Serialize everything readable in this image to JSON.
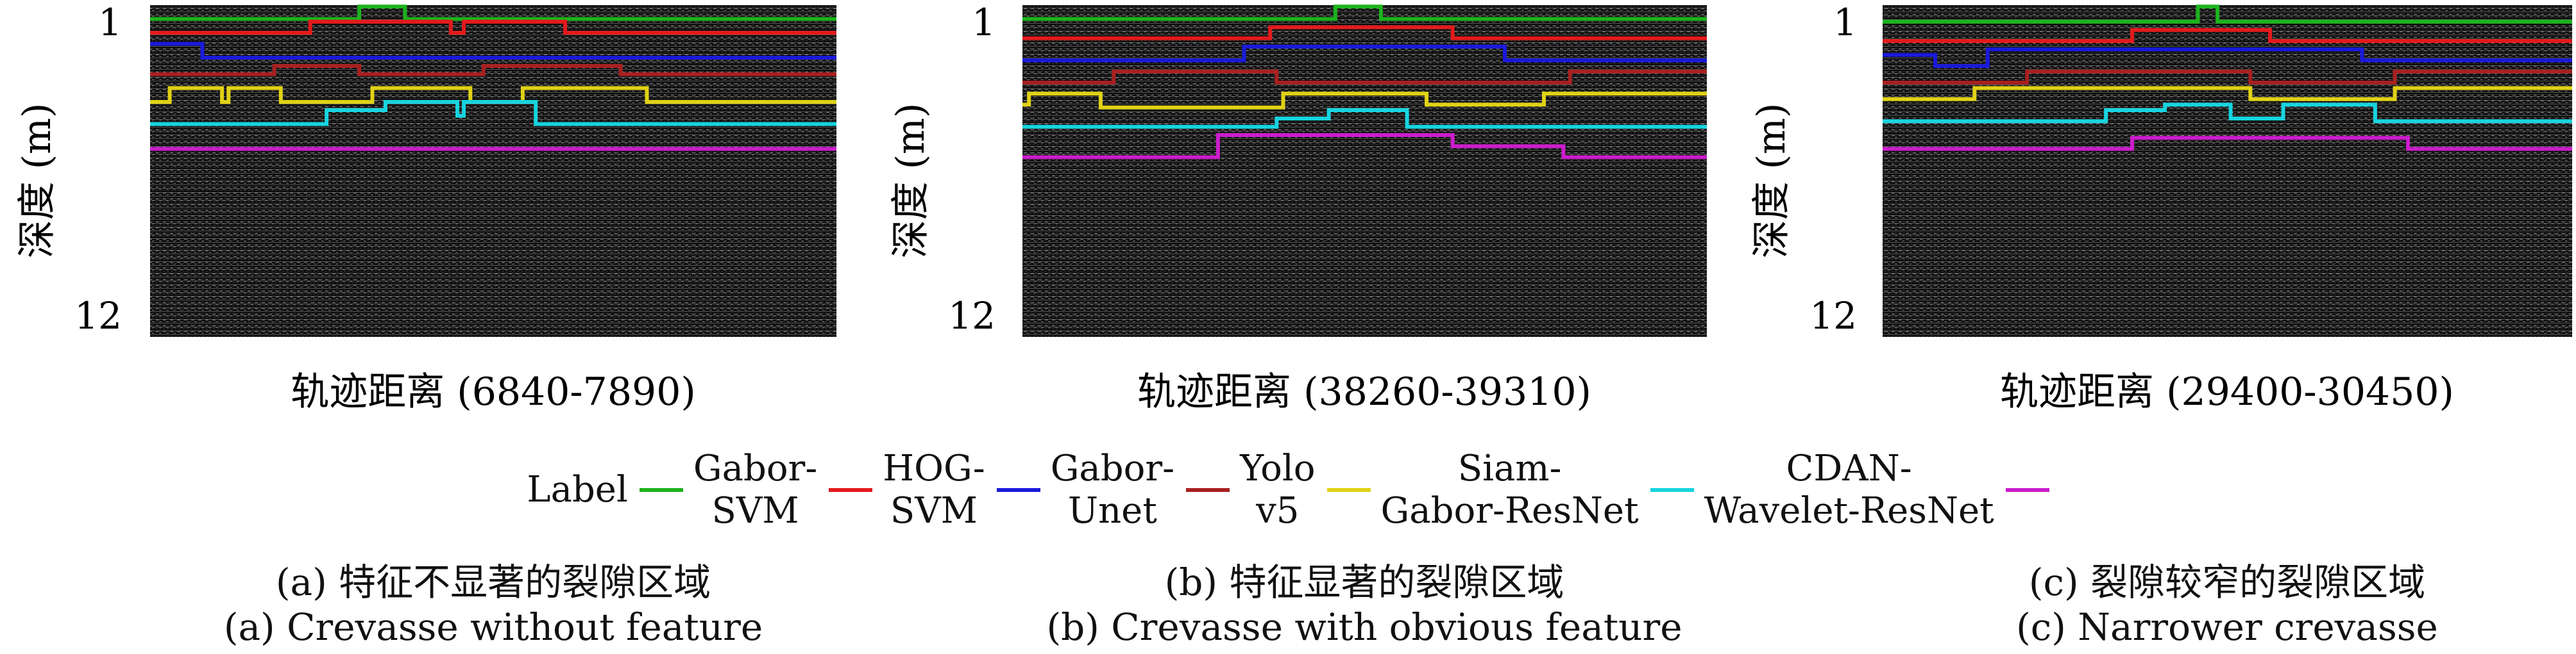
{
  "chart_data": [
    {
      "type": "line",
      "title": "",
      "xlabel": "轨迹距离 (6840-7890)",
      "ylabel": "深度 (m)",
      "ytick_labels": [
        "1",
        "12"
      ],
      "ylim": [
        12,
        1
      ],
      "x_range": [
        6840,
        7890
      ],
      "background": "radargram",
      "series": [
        {
          "name": "Label",
          "color": "#1db31d",
          "x": [
            6840,
            7160,
            7160,
            7230,
            7230,
            7890
          ],
          "y": [
            0.5,
            0.5,
            0.05,
            0.05,
            0.5,
            0.5
          ]
        },
        {
          "name": "Gabor-SVM",
          "color": "#e31a1c",
          "x": [
            6840,
            7085,
            7085,
            7300,
            7300,
            7320,
            7320,
            7475,
            7475,
            7890
          ],
          "y": [
            1.0,
            1.0,
            0.6,
            0.6,
            1.0,
            1.0,
            0.6,
            0.6,
            1.0,
            1.0
          ]
        },
        {
          "name": "HOG-SVM",
          "color": "#1a1adb",
          "x": [
            6840,
            6920,
            6920,
            7890
          ],
          "y": [
            1.4,
            1.4,
            1.9,
            1.9
          ]
        },
        {
          "name": "Gabor-Unet",
          "color": "#a82020",
          "x": [
            6840,
            7030,
            7030,
            7160,
            7160,
            7350,
            7350,
            7560,
            7560,
            7890
          ],
          "y": [
            2.5,
            2.5,
            2.2,
            2.2,
            2.5,
            2.5,
            2.2,
            2.2,
            2.5,
            2.5
          ]
        },
        {
          "name": "Yolo v5",
          "color": "#e0d215",
          "x": [
            6840,
            6870,
            6870,
            6950,
            6950,
            6960,
            6960,
            7040,
            7040,
            7180,
            7180,
            7330,
            7330,
            7410,
            7410,
            7600,
            7600,
            7890
          ],
          "y": [
            3.5,
            3.5,
            3.0,
            3.0,
            3.5,
            3.5,
            3.0,
            3.0,
            3.5,
            3.5,
            3.0,
            3.0,
            3.5,
            3.5,
            3.0,
            3.0,
            3.5,
            3.5
          ]
        },
        {
          "name": "Siam-Gabor-ResNet",
          "color": "#17d4e0",
          "x": [
            6840,
            7110,
            7110,
            7200,
            7200,
            7310,
            7310,
            7320,
            7320,
            7430,
            7430,
            7890
          ],
          "y": [
            4.3,
            4.3,
            3.8,
            3.8,
            3.5,
            3.5,
            4.0,
            4.0,
            3.5,
            3.5,
            4.3,
            4.3
          ]
        },
        {
          "name": "CDAN-Wavelet-ResNet",
          "color": "#cc1ccc",
          "x": [
            6840,
            7890
          ],
          "y": [
            5.2,
            5.2
          ]
        }
      ]
    },
    {
      "type": "line",
      "title": "",
      "xlabel": "轨迹距离 (38260-39310)",
      "ylabel": "深度 (m)",
      "ytick_labels": [
        "1",
        "12"
      ],
      "ylim": [
        12,
        1
      ],
      "x_range": [
        38260,
        39310
      ],
      "background": "radargram",
      "series": [
        {
          "name": "Label",
          "color": "#1db31d",
          "x": [
            38260,
            38740,
            38740,
            38810,
            38810,
            39310
          ],
          "y": [
            0.5,
            0.5,
            0.05,
            0.05,
            0.5,
            0.5
          ]
        },
        {
          "name": "Gabor-SVM",
          "color": "#e31a1c",
          "x": [
            38260,
            38640,
            38640,
            38920,
            38920,
            39310
          ],
          "y": [
            1.2,
            1.2,
            0.8,
            0.8,
            1.2,
            1.2
          ]
        },
        {
          "name": "HOG-SVM",
          "color": "#1a1adb",
          "x": [
            38260,
            38600,
            38600,
            39000,
            39000,
            39310
          ],
          "y": [
            2.0,
            2.0,
            1.5,
            1.5,
            2.0,
            2.0
          ]
        },
        {
          "name": "Gabor-Unet",
          "color": "#a82020",
          "x": [
            38260,
            38400,
            38400,
            38650,
            38650,
            39100,
            39100,
            39310
          ],
          "y": [
            2.8,
            2.8,
            2.4,
            2.4,
            2.8,
            2.8,
            2.4,
            2.4
          ]
        },
        {
          "name": "Yolo v5",
          "color": "#e0d215",
          "x": [
            38260,
            38270,
            38270,
            38380,
            38380,
            38660,
            38660,
            38880,
            38880,
            39060,
            39060,
            39310
          ],
          "y": [
            3.6,
            3.6,
            3.2,
            3.2,
            3.7,
            3.7,
            3.2,
            3.2,
            3.6,
            3.6,
            3.2,
            3.2
          ]
        },
        {
          "name": "Siam-Gabor-ResNet",
          "color": "#17d4e0",
          "x": [
            38260,
            38650,
            38650,
            38730,
            38730,
            38850,
            38850,
            39310
          ],
          "y": [
            4.4,
            4.4,
            4.1,
            4.1,
            3.8,
            3.8,
            4.4,
            4.4
          ]
        },
        {
          "name": "CDAN-Wavelet-ResNet",
          "color": "#cc1ccc",
          "x": [
            38260,
            38560,
            38560,
            38920,
            38920,
            39090,
            39090,
            39310
          ],
          "y": [
            5.5,
            5.5,
            4.7,
            4.7,
            5.1,
            5.1,
            5.5,
            5.5
          ]
        }
      ]
    },
    {
      "type": "line",
      "title": "",
      "xlabel": "轨迹距离 (29400-30450)",
      "ylabel": "深度 (m)",
      "ytick_labels": [
        "1",
        "12"
      ],
      "ylim": [
        12,
        1
      ],
      "x_range": [
        29400,
        30450
      ],
      "background": "radargram",
      "series": [
        {
          "name": "Label",
          "color": "#1db31d",
          "x": [
            29400,
            29880,
            29880,
            29910,
            29910,
            30450
          ],
          "y": [
            0.6,
            0.6,
            0.05,
            0.05,
            0.6,
            0.6
          ]
        },
        {
          "name": "Gabor-SVM",
          "color": "#e31a1c",
          "x": [
            29400,
            29780,
            29780,
            29990,
            29990,
            30450
          ],
          "y": [
            1.3,
            1.3,
            0.9,
            0.9,
            1.3,
            1.3
          ]
        },
        {
          "name": "HOG-SVM",
          "color": "#1a1adb",
          "x": [
            29400,
            29480,
            29480,
            29560,
            29560,
            30130,
            30130,
            30450
          ],
          "y": [
            1.8,
            1.8,
            2.2,
            2.2,
            1.6,
            1.6,
            2.0,
            2.0
          ]
        },
        {
          "name": "Gabor-Unet",
          "color": "#a82020",
          "x": [
            29400,
            29620,
            29620,
            29960,
            29960,
            30180,
            30180,
            30450
          ],
          "y": [
            2.8,
            2.8,
            2.4,
            2.4,
            2.8,
            2.8,
            2.4,
            2.4
          ]
        },
        {
          "name": "Yolo v5",
          "color": "#e0d215",
          "x": [
            29400,
            29540,
            29540,
            29960,
            29960,
            30180,
            30180,
            30450
          ],
          "y": [
            3.4,
            3.4,
            3.0,
            3.0,
            3.4,
            3.4,
            3.0,
            3.0
          ]
        },
        {
          "name": "Siam-Gabor-ResNet",
          "color": "#17d4e0",
          "x": [
            29400,
            29740,
            29740,
            29830,
            29830,
            29930,
            29930,
            30010,
            30010,
            30150,
            30150,
            30450
          ],
          "y": [
            4.2,
            4.2,
            3.8,
            3.8,
            3.6,
            3.6,
            4.1,
            4.1,
            3.6,
            3.6,
            4.2,
            4.2
          ]
        },
        {
          "name": "CDAN-Wavelet-ResNet",
          "color": "#cc1ccc",
          "x": [
            29400,
            29780,
            29780,
            30200,
            30200,
            30450
          ],
          "y": [
            5.2,
            5.2,
            4.8,
            4.8,
            5.2,
            5.2
          ]
        }
      ]
    }
  ],
  "legend": {
    "items": [
      {
        "label": "Label",
        "color": "#1db31d"
      },
      {
        "label": "Gabor-\nSVM",
        "color": "#e31a1c"
      },
      {
        "label": "HOG-\nSVM",
        "color": "#1a1adb"
      },
      {
        "label": "Gabor-\nUnet",
        "color": "#a82020"
      },
      {
        "label": "Yolo\nv5",
        "color": "#e0d215"
      },
      {
        "label": "Siam-\nGabor-ResNet",
        "color": "#17d4e0"
      },
      {
        "label": "CDAN-\nWavelet-ResNet",
        "color": "#cc1ccc"
      }
    ]
  },
  "captions_cn": [
    "(a) 特征不显著的裂隙区域",
    "(b) 特征显著的裂隙区域",
    "(c) 裂隙较窄的裂隙区域"
  ],
  "captions_en": [
    "(a) Crevasse without feature",
    "(b) Crevasse with obvious feature",
    "(c) Narrower crevasse"
  ]
}
